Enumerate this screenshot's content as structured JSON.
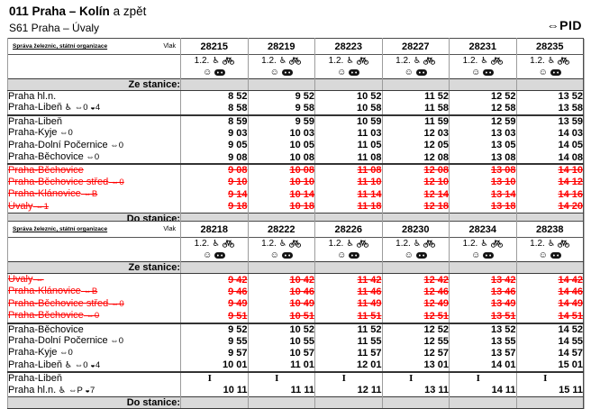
{
  "page": {
    "title_bold": "011 Praha – Kolín",
    "title_rest": " a zpět",
    "subtitle": "S61 Praha – Úvaly",
    "pid_logo": "⇔PID"
  },
  "colors": {
    "red": "#ff0000",
    "band_bg": "#d9d9d9",
    "border_dark": "#3a3a3a",
    "border_light": "#9c9c9c"
  },
  "corner": {
    "operator": "Správa železnic, státní organizace",
    "train_label": "Vlak"
  },
  "train_icons": {
    "classes_label": "1.2.",
    "wheelchair_glyph": "♿",
    "bicycle_icon": "bicycle-icon",
    "face_glyph": "☺",
    "badge_icon": "dark-badge-icon"
  },
  "bands": {
    "from": "Ze stanice:",
    "to": "Do stanice:"
  },
  "tables": [
    {
      "direction": "outbound",
      "trains": [
        "28215",
        "28219",
        "28223",
        "28227",
        "28231",
        "28235"
      ],
      "rows": [
        {
          "station": "Praha hl.n.",
          "suffix": "",
          "red": false,
          "sep": false,
          "times": [
            "8 52",
            "9 52",
            "10 52",
            "11 52",
            "12 52",
            "13 52"
          ]
        },
        {
          "station": "Praha-Libeň",
          "suffix": "♿ ⇔0 ◒4",
          "red": false,
          "sep": false,
          "times": [
            "8 58",
            "9 58",
            "10 58",
            "11 58",
            "12 58",
            "13 58"
          ]
        },
        {
          "station": "Praha-Libeň",
          "suffix": "",
          "red": false,
          "sep": true,
          "times": [
            "8 59",
            "9 59",
            "10 59",
            "11 59",
            "12 59",
            "13 59"
          ]
        },
        {
          "station": "Praha-Kyje",
          "suffix": "⇔0",
          "red": false,
          "sep": false,
          "times": [
            "9 03",
            "10 03",
            "11 03",
            "12 03",
            "13 03",
            "14 03"
          ]
        },
        {
          "station": "Praha-Dolní Počernice",
          "suffix": "⇔0",
          "red": false,
          "sep": false,
          "times": [
            "9 05",
            "10 05",
            "11 05",
            "12 05",
            "13 05",
            "14 05"
          ]
        },
        {
          "station": "Praha-Běchovice",
          "suffix": "⇔0",
          "red": false,
          "sep": false,
          "times": [
            "9 08",
            "10 08",
            "11 08",
            "12 08",
            "13 08",
            "14 08"
          ]
        },
        {
          "station": "Praha-Běchovice",
          "suffix": "",
          "red": true,
          "sep": true,
          "times": [
            "9 08",
            "10 08",
            "11 08",
            "12 08",
            "13 08",
            "14 10"
          ]
        },
        {
          "station": "Praha-Běchovice střed",
          "suffix": "⇔0",
          "red": true,
          "sep": false,
          "times": [
            "9 10",
            "10 10",
            "11 10",
            "12 10",
            "13 10",
            "14 12"
          ]
        },
        {
          "station": "Praha-Klánovice",
          "suffix": "⇔B",
          "red": true,
          "sep": false,
          "times": [
            "9 14",
            "10 14",
            "11 14",
            "12 14",
            "13 14",
            "14 16"
          ]
        },
        {
          "station": "Úvaly",
          "suffix": "⇔1",
          "red": true,
          "sep": false,
          "times": [
            "9 18",
            "10 18",
            "11 18",
            "12 18",
            "13 18",
            "14 20"
          ]
        }
      ]
    },
    {
      "direction": "return",
      "trains": [
        "28218",
        "28222",
        "28226",
        "28230",
        "28234",
        "28238"
      ],
      "rows": [
        {
          "station": "Úvaly",
          "suffix": "⇔",
          "red": true,
          "sep": false,
          "times": [
            "9 42",
            "10 42",
            "11 42",
            "12 42",
            "13 42",
            "14 42"
          ]
        },
        {
          "station": "Praha-Klánovice",
          "suffix": "⇔B",
          "red": true,
          "sep": false,
          "times": [
            "9 46",
            "10 46",
            "11 46",
            "12 46",
            "13 46",
            "14 46"
          ]
        },
        {
          "station": "Praha-Běchovice střed",
          "suffix": "⇔0",
          "red": true,
          "sep": false,
          "times": [
            "9 49",
            "10 49",
            "11 49",
            "12 49",
            "13 49",
            "14 49"
          ]
        },
        {
          "station": "Praha-Běchovice",
          "suffix": "⇔0",
          "red": true,
          "sep": false,
          "times": [
            "9 51",
            "10 51",
            "11 51",
            "12 51",
            "13 51",
            "14 51"
          ]
        },
        {
          "station": "Praha-Běchovice",
          "suffix": "",
          "red": false,
          "sep": true,
          "times": [
            "9 52",
            "10 52",
            "11 52",
            "12 52",
            "13 52",
            "14 52"
          ]
        },
        {
          "station": "Praha-Dolní Počernice",
          "suffix": "⇔0",
          "red": false,
          "sep": false,
          "times": [
            "9 55",
            "10 55",
            "11 55",
            "12 55",
            "13 55",
            "14 55"
          ]
        },
        {
          "station": "Praha-Kyje",
          "suffix": "⇔0",
          "red": false,
          "sep": false,
          "times": [
            "9 57",
            "10 57",
            "11 57",
            "12 57",
            "13 57",
            "14 57"
          ]
        },
        {
          "station": "Praha-Libeň",
          "suffix": "♿ ⇔0 ◒4",
          "red": false,
          "sep": false,
          "times": [
            "10 01",
            "11 01",
            "12 01",
            "13 01",
            "14 01",
            "15 01"
          ]
        },
        {
          "station": "Praha-Libeň",
          "suffix": "",
          "red": false,
          "sep": true,
          "times": [
            "I",
            "I",
            "I",
            "I",
            "I",
            "I"
          ]
        },
        {
          "station": "Praha hl.n.",
          "suffix": "♿ ⇔P ◒7",
          "red": false,
          "sep": false,
          "times": [
            "10 11",
            "11 11",
            "12 11",
            "13 11",
            "14 11",
            "15 11"
          ]
        }
      ]
    }
  ]
}
